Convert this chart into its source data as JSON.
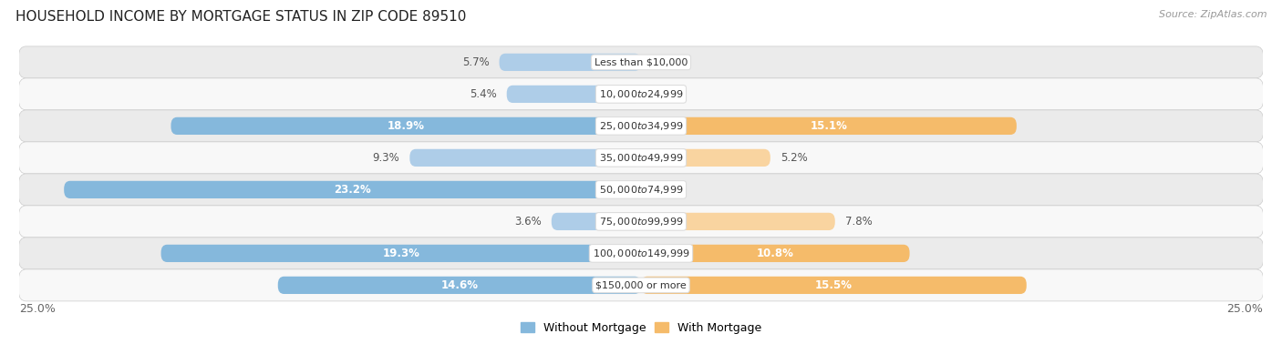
{
  "title": "HOUSEHOLD INCOME BY MORTGAGE STATUS IN ZIP CODE 89510",
  "source": "Source: ZipAtlas.com",
  "categories": [
    "Less than $10,000",
    "$10,000 to $24,999",
    "$25,000 to $34,999",
    "$35,000 to $49,999",
    "$50,000 to $74,999",
    "$75,000 to $99,999",
    "$100,000 to $149,999",
    "$150,000 or more"
  ],
  "without_mortgage": [
    5.7,
    5.4,
    18.9,
    9.3,
    23.2,
    3.6,
    19.3,
    14.6
  ],
  "with_mortgage": [
    0.0,
    0.0,
    15.1,
    5.2,
    0.0,
    7.8,
    10.8,
    15.5
  ],
  "blue_color": "#85B8DC",
  "blue_light": "#AECDE8",
  "orange_color": "#F5BB6A",
  "orange_light": "#F9D4A0",
  "bg_row_light": "#EBEBEB",
  "bg_row_white": "#F8F8F8",
  "title_fontsize": 11,
  "source_fontsize": 8,
  "label_fontsize": 8.5,
  "cat_fontsize": 8,
  "axis_max": 25.0,
  "bar_height": 0.55,
  "legend_label_without": "Without Mortgage",
  "legend_label_with": "With Mortgage"
}
